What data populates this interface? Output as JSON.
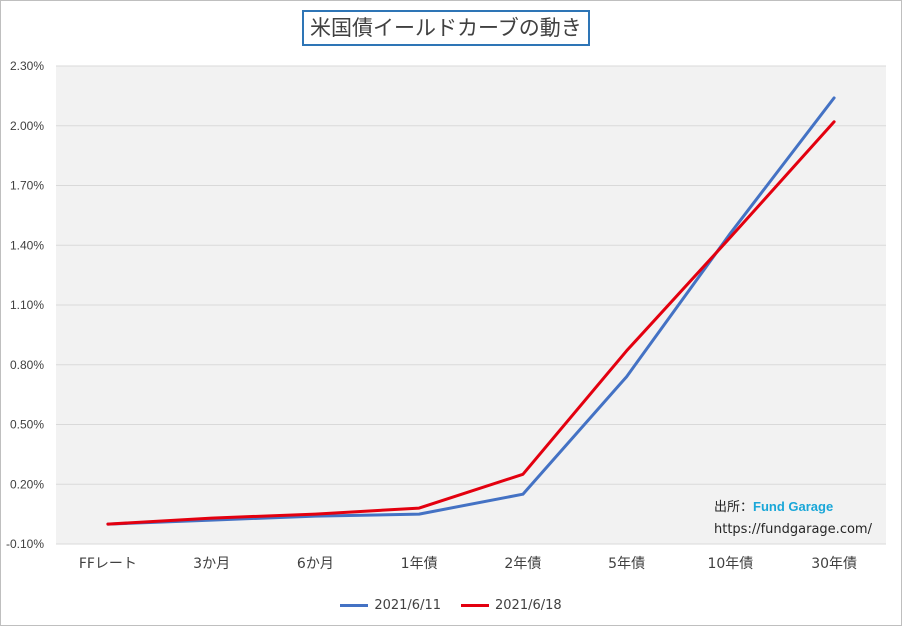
{
  "title": "米国債イールドカーブの動き",
  "source": {
    "label": "出所：",
    "name": "Fund Garage",
    "url": "https://fundgarage.com/"
  },
  "chart_data": {
    "type": "line",
    "title": "米国債イールドカーブの動き",
    "xlabel": "",
    "ylabel": "",
    "categories": [
      "FFレート",
      "3か月",
      "6か月",
      "1年債",
      "2年債",
      "5年債",
      "10年債",
      "30年債"
    ],
    "series": [
      {
        "name": "2021/6/11",
        "color": "#4472c4",
        "values": [
          0.0,
          0.02,
          0.04,
          0.05,
          0.15,
          0.74,
          1.46,
          2.14
        ]
      },
      {
        "name": "2021/6/18",
        "color": "#e3000f",
        "values": [
          0.0,
          0.03,
          0.05,
          0.08,
          0.25,
          0.87,
          1.44,
          2.02
        ]
      }
    ],
    "yticks": [
      "-0.10%",
      "0.20%",
      "0.50%",
      "0.80%",
      "1.10%",
      "1.40%",
      "1.70%",
      "2.00%",
      "2.30%"
    ],
    "ytick_values": [
      -0.1,
      0.2,
      0.5,
      0.8,
      1.1,
      1.4,
      1.7,
      2.0,
      2.3
    ],
    "ylim": [
      -0.1,
      2.3
    ],
    "grid": true,
    "legend": "bottom-center"
  }
}
